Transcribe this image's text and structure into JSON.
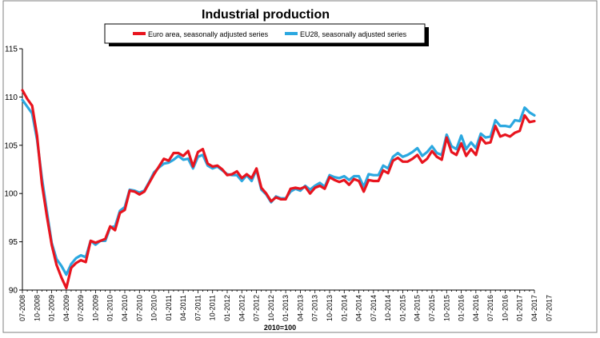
{
  "chart_data": {
    "type": "line",
    "title": "Industrial production",
    "xlabel": "2010=100",
    "ylabel": "",
    "ylim": [
      90,
      115
    ],
    "yticks": [
      90,
      95,
      100,
      105,
      110,
      115
    ],
    "grid": false,
    "legend_position": "top-center",
    "colors": {
      "euro": "#e8141e",
      "eu28": "#2ba8e0",
      "axis": "#000000",
      "frame": "#7f7f7f"
    },
    "xtick_labels": [
      "07-2008",
      "10-2008",
      "01-2009",
      "04-2009",
      "07-2009",
      "10-2009",
      "01-2010",
      "04-2010",
      "07-2010",
      "10-2010",
      "01-2011",
      "04-2011",
      "07-2011",
      "10-2011",
      "01-2012",
      "04-2012",
      "07-2012",
      "10-2012",
      "01-2013",
      "04-2013",
      "07-2013",
      "10-2013",
      "01-2014",
      "04-2014",
      "07-2014",
      "10-2014",
      "01-2015",
      "04-2015",
      "07-2015",
      "10-2015",
      "01-2016",
      "04-2016",
      "07-2016",
      "10-2016",
      "01-2017",
      "04-2017",
      "07-2017"
    ],
    "series": [
      {
        "name": "Euro area, seasonally adjusted series",
        "values": [
          110.7,
          109.8,
          109.1,
          106.0,
          101.0,
          97.7,
          94.7,
          92.6,
          91.3,
          90.2,
          92.3,
          92.8,
          93.1,
          92.9,
          95.1,
          94.9,
          95.1,
          95.3,
          96.6,
          96.2,
          98.0,
          98.3,
          100.3,
          100.2,
          99.9,
          100.2,
          101.1,
          102.0,
          102.8,
          103.6,
          103.4,
          104.2,
          104.2,
          103.9,
          104.4,
          102.8,
          104.3,
          104.6,
          103.1,
          102.8,
          102.9,
          102.5,
          101.9,
          102.0,
          102.3,
          101.6,
          102.0,
          101.6,
          102.6,
          100.6,
          100.0,
          99.2,
          99.6,
          99.4,
          99.4,
          100.5,
          100.6,
          100.5,
          100.7,
          100.0,
          100.6,
          100.8,
          100.5,
          101.7,
          101.4,
          101.2,
          101.4,
          100.9,
          101.5,
          101.3,
          100.2,
          101.4,
          101.3,
          101.3,
          102.4,
          102.1,
          103.4,
          103.7,
          103.3,
          103.3,
          103.6,
          104.0,
          103.2,
          103.6,
          104.4,
          103.8,
          103.5,
          105.8,
          104.3,
          104.0,
          105.2,
          103.9,
          104.6,
          104.0,
          105.8,
          105.2,
          105.3,
          107.0,
          105.9,
          106.1,
          105.9,
          106.3,
          106.5,
          108.1,
          107.4,
          107.5
        ]
      },
      {
        "name": "EU28, seasonally adjusted series",
        "values": [
          109.7,
          109.0,
          108.3,
          105.6,
          101.6,
          98.2,
          94.9,
          93.2,
          92.5,
          91.6,
          92.7,
          93.3,
          93.6,
          93.4,
          95.1,
          94.7,
          95.1,
          95.1,
          96.5,
          96.6,
          98.2,
          98.6,
          100.4,
          100.3,
          100.1,
          100.3,
          101.2,
          102.2,
          102.7,
          103.1,
          103.2,
          103.5,
          103.9,
          103.5,
          103.6,
          102.6,
          103.8,
          104.0,
          102.9,
          102.6,
          102.8,
          102.4,
          102.0,
          101.9,
          101.9,
          101.3,
          101.9,
          101.3,
          102.5,
          100.4,
          99.9,
          99.1,
          99.7,
          99.5,
          99.5,
          100.2,
          100.5,
          100.3,
          100.8,
          100.4,
          100.8,
          101.1,
          100.7,
          101.9,
          101.7,
          101.6,
          101.8,
          101.4,
          101.8,
          101.8,
          100.7,
          102.0,
          101.9,
          101.9,
          102.9,
          102.6,
          103.8,
          104.2,
          103.8,
          104.0,
          104.3,
          104.7,
          103.9,
          104.3,
          104.9,
          104.2,
          104.0,
          106.1,
          104.9,
          104.6,
          106.0,
          104.6,
          105.3,
          104.7,
          106.2,
          105.8,
          105.9,
          107.6,
          107.0,
          107.0,
          106.9,
          107.6,
          107.5,
          108.9,
          108.4,
          108.1
        ]
      }
    ]
  }
}
